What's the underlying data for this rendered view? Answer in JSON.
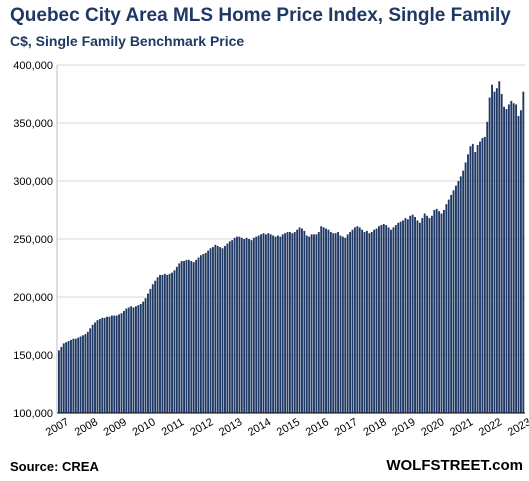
{
  "title": "Quebec City Area MLS Home Price Index, Single Family",
  "subtitle": "C$, Single Family Benchmark Price",
  "source": "Source: CREA",
  "brand": "WOLFSTREET.com",
  "chart_data": {
    "type": "bar",
    "title": "Quebec City Area MLS Home Price Index, Single Family",
    "subtitle": "C$, Single Family Benchmark Price",
    "xlabel": "",
    "ylabel": "",
    "ylim": [
      100000,
      400000
    ],
    "yticks": [
      100000,
      150000,
      200000,
      250000,
      300000,
      350000,
      400000
    ],
    "ytick_labels": [
      "100,000",
      "150,000",
      "200,000",
      "250,000",
      "300,000",
      "350,000",
      "400,000"
    ],
    "xtick_labels": [
      "2007",
      "2008",
      "2009",
      "2010",
      "2011",
      "2012",
      "2013",
      "2014",
      "2015",
      "2016",
      "2017",
      "2018",
      "2019",
      "2020",
      "2021",
      "2022",
      "2023"
    ],
    "grid": true,
    "bar_color": "#1f3864",
    "start": "2007-01",
    "frequency": "monthly",
    "values": [
      154000,
      157000,
      160000,
      161000,
      162000,
      163000,
      164000,
      164000,
      165000,
      166000,
      167000,
      168000,
      170000,
      173000,
      176000,
      178000,
      180000,
      181000,
      182000,
      182000,
      183000,
      183000,
      184000,
      184000,
      184000,
      185000,
      186000,
      188000,
      190000,
      191000,
      192000,
      191000,
      192000,
      193000,
      194000,
      196000,
      199000,
      203000,
      207000,
      211000,
      214000,
      217000,
      219000,
      219000,
      220000,
      219000,
      220000,
      221000,
      223000,
      226000,
      229000,
      231000,
      231000,
      232000,
      232000,
      231000,
      230000,
      232000,
      234000,
      236000,
      237000,
      238000,
      240000,
      242000,
      243000,
      245000,
      244000,
      243000,
      242000,
      244000,
      246000,
      248000,
      249000,
      251000,
      252000,
      252000,
      251000,
      250000,
      251000,
      250000,
      249000,
      251000,
      252000,
      253000,
      254000,
      255000,
      254000,
      255000,
      254000,
      253000,
      252000,
      253000,
      252000,
      254000,
      255000,
      256000,
      256000,
      255000,
      256000,
      258000,
      260000,
      259000,
      257000,
      253000,
      252000,
      254000,
      254000,
      254000,
      256000,
      261000,
      260000,
      259000,
      258000,
      256000,
      255000,
      255000,
      256000,
      253000,
      252000,
      251000,
      254000,
      256000,
      258000,
      260000,
      261000,
      260000,
      258000,
      256000,
      257000,
      255000,
      256000,
      258000,
      259000,
      261000,
      262000,
      263000,
      262000,
      260000,
      258000,
      260000,
      262000,
      264000,
      265000,
      266000,
      268000,
      267000,
      270000,
      271000,
      269000,
      266000,
      264000,
      268000,
      272000,
      270000,
      268000,
      270000,
      275000,
      276000,
      274000,
      272000,
      275000,
      280000,
      284000,
      288000,
      292000,
      296000,
      300000,
      304000,
      309000,
      316000,
      323000,
      330000,
      332000,
      325000,
      331000,
      334000,
      337000,
      338000,
      351000,
      372000,
      383000,
      377000,
      380000,
      386000,
      375000,
      364000,
      362000,
      366000,
      369000,
      367000,
      366000,
      356000,
      361000,
      377000
    ]
  }
}
